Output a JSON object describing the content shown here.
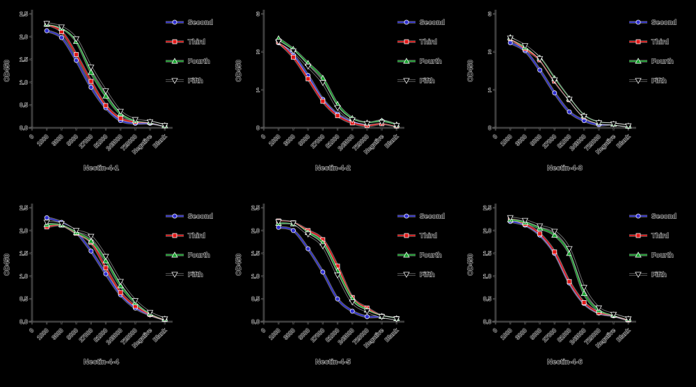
{
  "figure": {
    "background_color": "#000000",
    "description": "Six ELISA binding curves (OD450 vs serial antiserum dilution) for Nectin-4 antigens",
    "legend_labels": [
      "Second",
      "Third",
      "Fourth",
      "Fifth"
    ],
    "series_colors": {
      "Second": "#3030cf",
      "Third": "#e01818",
      "Fourth": "#18a32e",
      "Fifth": "#000000"
    },
    "series_markers": {
      "Second": "circle",
      "Third": "square",
      "Fourth": "triangle-up",
      "Fifth": "triangle-down"
    }
  },
  "chart_data": [
    {
      "type": "line",
      "title": "Nectin-4-1",
      "ylabel": "OD450",
      "x_categories": [
        "0",
        "1000",
        "3000",
        "9000",
        "27000",
        "81000",
        "243000",
        "729000",
        "Negative",
        "Blank"
      ],
      "ylim": [
        0,
        2.5
      ],
      "yticks": [
        "0.0",
        "0.5",
        "1.0",
        "1.5",
        "2.0",
        "2.5"
      ],
      "grid": false,
      "legend_position": "right-top",
      "series": [
        {
          "name": "Second",
          "color": "#3030cf",
          "marker": "circle",
          "values": [
            2.13,
            1.98,
            1.48,
            0.89,
            0.44,
            0.16,
            0.1,
            0.1,
            0.05
          ]
        },
        {
          "name": "Third",
          "color": "#e01818",
          "marker": "square",
          "values": [
            2.27,
            2.11,
            1.61,
            1.02,
            0.49,
            0.21,
            0.13,
            0.12,
            0.05
          ]
        },
        {
          "name": "Fourth",
          "color": "#18a32e",
          "marker": "triangle-up",
          "values": [
            2.28,
            2.19,
            1.9,
            1.22,
            0.7,
            0.31,
            0.16,
            0.13,
            0.05
          ]
        },
        {
          "name": "Fifth",
          "color": "#000000",
          "marker": "triangle-down",
          "values": [
            2.29,
            2.21,
            1.95,
            1.33,
            0.81,
            0.36,
            0.18,
            0.13,
            0.05
          ]
        }
      ]
    },
    {
      "type": "line",
      "title": "Nectin-4-2",
      "ylabel": "OD450",
      "x_categories": [
        "0",
        "1000",
        "3000",
        "9000",
        "27000",
        "81000",
        "243000",
        "729000",
        "Negative",
        "Blank"
      ],
      "ylim": [
        0,
        3
      ],
      "yticks": [
        "0",
        "1",
        "2",
        "3"
      ],
      "grid": false,
      "legend_position": "right-top",
      "series": [
        {
          "name": "Second",
          "color": "#3030cf",
          "marker": "circle",
          "values": [
            2.24,
            1.92,
            1.38,
            0.75,
            0.36,
            0.16,
            0.08,
            0.18,
            0.06
          ]
        },
        {
          "name": "Third",
          "color": "#e01818",
          "marker": "square",
          "values": [
            2.26,
            1.86,
            1.29,
            0.7,
            0.32,
            0.13,
            0.06,
            0.11,
            0.05
          ]
        },
        {
          "name": "Fourth",
          "color": "#18a32e",
          "marker": "triangle-up",
          "values": [
            2.35,
            2.07,
            1.7,
            1.31,
            0.62,
            0.25,
            0.13,
            0.18,
            0.08
          ]
        },
        {
          "name": "Fifth",
          "color": "#000000",
          "marker": "triangle-down",
          "values": [
            2.27,
            2.02,
            1.62,
            1.19,
            0.53,
            0.21,
            0.11,
            0.14,
            0.06
          ]
        }
      ]
    },
    {
      "type": "line",
      "title": "Nectin-4-3",
      "ylabel": "OD450",
      "x_categories": [
        "0",
        "1000",
        "3000",
        "9000",
        "27000",
        "81000",
        "243000",
        "729000",
        "Negative",
        "Blank"
      ],
      "ylim": [
        0,
        3
      ],
      "yticks": [
        "0",
        "1",
        "2",
        "3"
      ],
      "grid": false,
      "legend_position": "right-top",
      "series": [
        {
          "name": "Second",
          "color": "#3030cf",
          "marker": "circle",
          "values": [
            2.24,
            2.03,
            1.52,
            0.92,
            0.42,
            0.19,
            0.08,
            0.1,
            0.04
          ]
        },
        {
          "name": "Third",
          "color": "#e01818",
          "marker": "square",
          "values": [
            2.35,
            2.08,
            1.79,
            1.23,
            0.74,
            0.29,
            0.13,
            0.1,
            0.05
          ]
        },
        {
          "name": "Fourth",
          "color": "#18a32e",
          "marker": "triangle-up",
          "values": [
            2.38,
            2.12,
            1.84,
            1.3,
            0.77,
            0.32,
            0.14,
            0.1,
            0.05
          ]
        },
        {
          "name": "Fifth",
          "color": "#000000",
          "marker": "triangle-down",
          "values": [
            2.36,
            2.16,
            1.82,
            1.26,
            0.75,
            0.3,
            0.13,
            0.1,
            0.05
          ]
        }
      ]
    },
    {
      "type": "line",
      "title": "Nectin-4-4",
      "ylabel": "OD450",
      "x_categories": [
        "0",
        "1000",
        "3000",
        "9000",
        "27000",
        "81000",
        "243000",
        "729000",
        "Negative",
        "Blank"
      ],
      "ylim": [
        0,
        2.5
      ],
      "yticks": [
        "0.0",
        "0.5",
        "1.0",
        "1.5",
        "2.0",
        "2.5"
      ],
      "grid": false,
      "legend_position": "right-top",
      "series": [
        {
          "name": "Second",
          "color": "#3030cf",
          "marker": "circle",
          "values": [
            2.28,
            2.18,
            1.96,
            1.55,
            1.05,
            0.59,
            0.3,
            0.15,
            0.05
          ]
        },
        {
          "name": "Third",
          "color": "#e01818",
          "marker": "square",
          "values": [
            2.08,
            2.12,
            1.94,
            1.74,
            1.18,
            0.64,
            0.34,
            0.16,
            0.05
          ]
        },
        {
          "name": "Fourth",
          "color": "#18a32e",
          "marker": "triangle-up",
          "values": [
            2.13,
            2.13,
            1.96,
            1.77,
            1.34,
            0.79,
            0.42,
            0.18,
            0.06
          ]
        },
        {
          "name": "Fifth",
          "color": "#000000",
          "marker": "triangle-down",
          "values": [
            2.18,
            2.15,
            2.0,
            1.87,
            1.43,
            0.88,
            0.46,
            0.2,
            0.06
          ]
        }
      ]
    },
    {
      "type": "line",
      "title": "Nectin-4-5",
      "ylabel": "OD450",
      "x_categories": [
        "0",
        "1000",
        "3000",
        "9000",
        "27000",
        "81000",
        "243000",
        "729000",
        "Negative",
        "Blank"
      ],
      "ylim": [
        0,
        2.5
      ],
      "yticks": [
        "0.0",
        "0.5",
        "1.0",
        "1.5",
        "2.0",
        "2.5"
      ],
      "grid": false,
      "legend_position": "right-top",
      "series": [
        {
          "name": "Second",
          "color": "#3030cf",
          "marker": "circle",
          "values": [
            2.07,
            2.0,
            1.6,
            1.09,
            0.5,
            0.23,
            0.11,
            0.11,
            0.06
          ]
        },
        {
          "name": "Third",
          "color": "#e01818",
          "marker": "square",
          "values": [
            2.21,
            2.17,
            2.0,
            1.8,
            1.22,
            0.53,
            0.3,
            0.12,
            0.07
          ]
        },
        {
          "name": "Fourth",
          "color": "#18a32e",
          "marker": "triangle-up",
          "values": [
            2.16,
            2.15,
            1.96,
            1.73,
            1.12,
            0.5,
            0.26,
            0.12,
            0.07
          ]
        },
        {
          "name": "Fifth",
          "color": "#000000",
          "marker": "triangle-down",
          "values": [
            2.19,
            2.16,
            1.92,
            1.66,
            1.02,
            0.43,
            0.23,
            0.11,
            0.06
          ]
        }
      ]
    },
    {
      "type": "line",
      "title": "Nectin-4-6",
      "ylabel": "OD450",
      "x_categories": [
        "0",
        "1000",
        "3000",
        "9000",
        "27000",
        "81000",
        "243000",
        "729000",
        "Negative",
        "Blank"
      ],
      "ylim": [
        0,
        2.5
      ],
      "yticks": [
        "0.0",
        "0.5",
        "1.0",
        "1.5",
        "2.0",
        "2.5"
      ],
      "grid": false,
      "legend_position": "right-top",
      "series": [
        {
          "name": "Second",
          "color": "#3030cf",
          "marker": "circle",
          "values": [
            2.2,
            2.12,
            1.9,
            1.5,
            0.85,
            0.4,
            0.19,
            0.13,
            0.04
          ]
        },
        {
          "name": "Third",
          "color": "#e01818",
          "marker": "square",
          "values": [
            2.28,
            2.14,
            1.93,
            1.53,
            0.88,
            0.42,
            0.2,
            0.14,
            0.04
          ]
        },
        {
          "name": "Fourth",
          "color": "#18a32e",
          "marker": "triangle-up",
          "values": [
            2.24,
            2.18,
            2.05,
            1.9,
            1.5,
            0.62,
            0.25,
            0.15,
            0.06
          ]
        },
        {
          "name": "Fifth",
          "color": "#000000",
          "marker": "triangle-down",
          "values": [
            2.28,
            2.22,
            2.1,
            1.98,
            1.6,
            0.75,
            0.3,
            0.16,
            0.06
          ]
        }
      ]
    }
  ]
}
